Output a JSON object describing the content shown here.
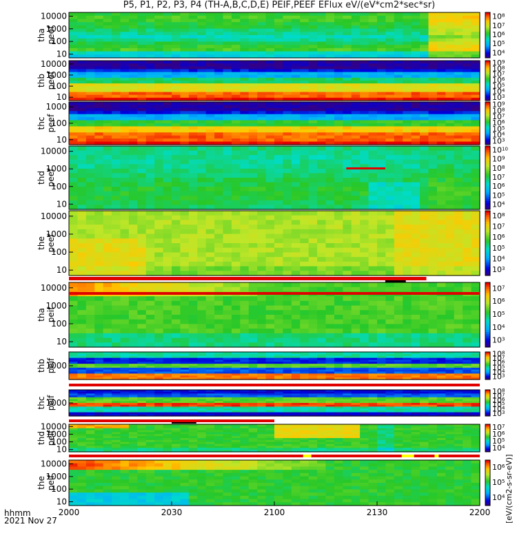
{
  "title": "P5, P1, P2, P3, P4 (TH-A,B,C,D,E) PEIF,PEEF EFlux eV/(eV*cm2*sec*sr)",
  "footer": {
    "time_label": "hhmm",
    "date_label": "2021 Nov 27"
  },
  "units_label": "[eV/(cm2-s-sr-eV)]",
  "chart_data": {
    "type": "heatmap",
    "x_tick_labels": [
      "2000",
      "2030",
      "2100",
      "2130",
      "2200"
    ],
    "panels": [
      {
        "id": "tha-peef",
        "label_line1": "tha",
        "label_line2": "peef",
        "y_ticks": [
          "10",
          "100",
          "1000",
          "10000"
        ],
        "colorbar_ticks": [
          "10^4",
          "10^5",
          "10^6",
          "10^7",
          "10^8"
        ]
      },
      {
        "id": "thb-peef",
        "label_line1": "thb",
        "label_line2": "peef",
        "y_ticks": [
          "10",
          "100",
          "1000",
          "10000"
        ],
        "colorbar_ticks": [
          "10^3",
          "10^4",
          "10^5",
          "10^6",
          "10^7",
          "10^8",
          "10^9"
        ]
      },
      {
        "id": "thc-peef",
        "label_line1": "thc",
        "label_line2": "peef",
        "y_ticks": [
          "10",
          "100",
          "1000"
        ],
        "colorbar_ticks": [
          "10^3",
          "10^4",
          "10^5",
          "10^6",
          "10^7",
          "10^8",
          "10^9"
        ]
      },
      {
        "id": "thd-peef",
        "label_line1": "thd",
        "label_line2": "peef",
        "y_ticks": [
          "10",
          "100",
          "1000",
          "10000"
        ],
        "colorbar_ticks": [
          "10^4",
          "10^5",
          "10^6",
          "10^7",
          "10^8",
          "10^9",
          "10^10"
        ]
      },
      {
        "id": "the-peef",
        "label_line1": "the",
        "label_line2": "peef",
        "y_ticks": [
          "10",
          "100",
          "1000",
          "10000"
        ],
        "colorbar_ticks": [
          "10^3",
          "10^4",
          "10^5",
          "10^6",
          "10^7",
          "10^8"
        ]
      },
      {
        "id": "tha-peif",
        "label_line1": "tha",
        "label_line2": "peif",
        "y_ticks": [
          "10",
          "100",
          "1000",
          "10000"
        ],
        "colorbar_ticks": [
          "10^3",
          "10^4",
          "10^5",
          "10^6",
          "10^7"
        ]
      },
      {
        "id": "thb-peif",
        "label_line1": "thb",
        "label_line2": "peif",
        "y_ticks": [
          "1000"
        ],
        "colorbar_ticks": [
          "10^3",
          "10^4",
          "10^5",
          "10^6",
          "10^7",
          "10^8"
        ]
      },
      {
        "id": "thc-peif",
        "label_line1": "thc",
        "label_line2": "peif",
        "y_ticks": [
          "1000"
        ],
        "colorbar_ticks": [
          "10^3",
          "10^4",
          "10^5",
          "10^6",
          "10^7",
          "10^8"
        ]
      },
      {
        "id": "thd-peif",
        "label_line1": "thd",
        "label_line2": "peif",
        "y_ticks": [
          "10",
          "100",
          "1000",
          "10000"
        ],
        "colorbar_ticks": [
          "10^4",
          "10^5",
          "10^6",
          "10^7"
        ]
      },
      {
        "id": "the-peif",
        "label_line1": "the",
        "label_line2": "peif",
        "y_ticks": [
          "10",
          "100",
          "1000",
          "10000"
        ],
        "colorbar_ticks": [
          "10^4",
          "10^5",
          "10^6"
        ]
      }
    ]
  }
}
